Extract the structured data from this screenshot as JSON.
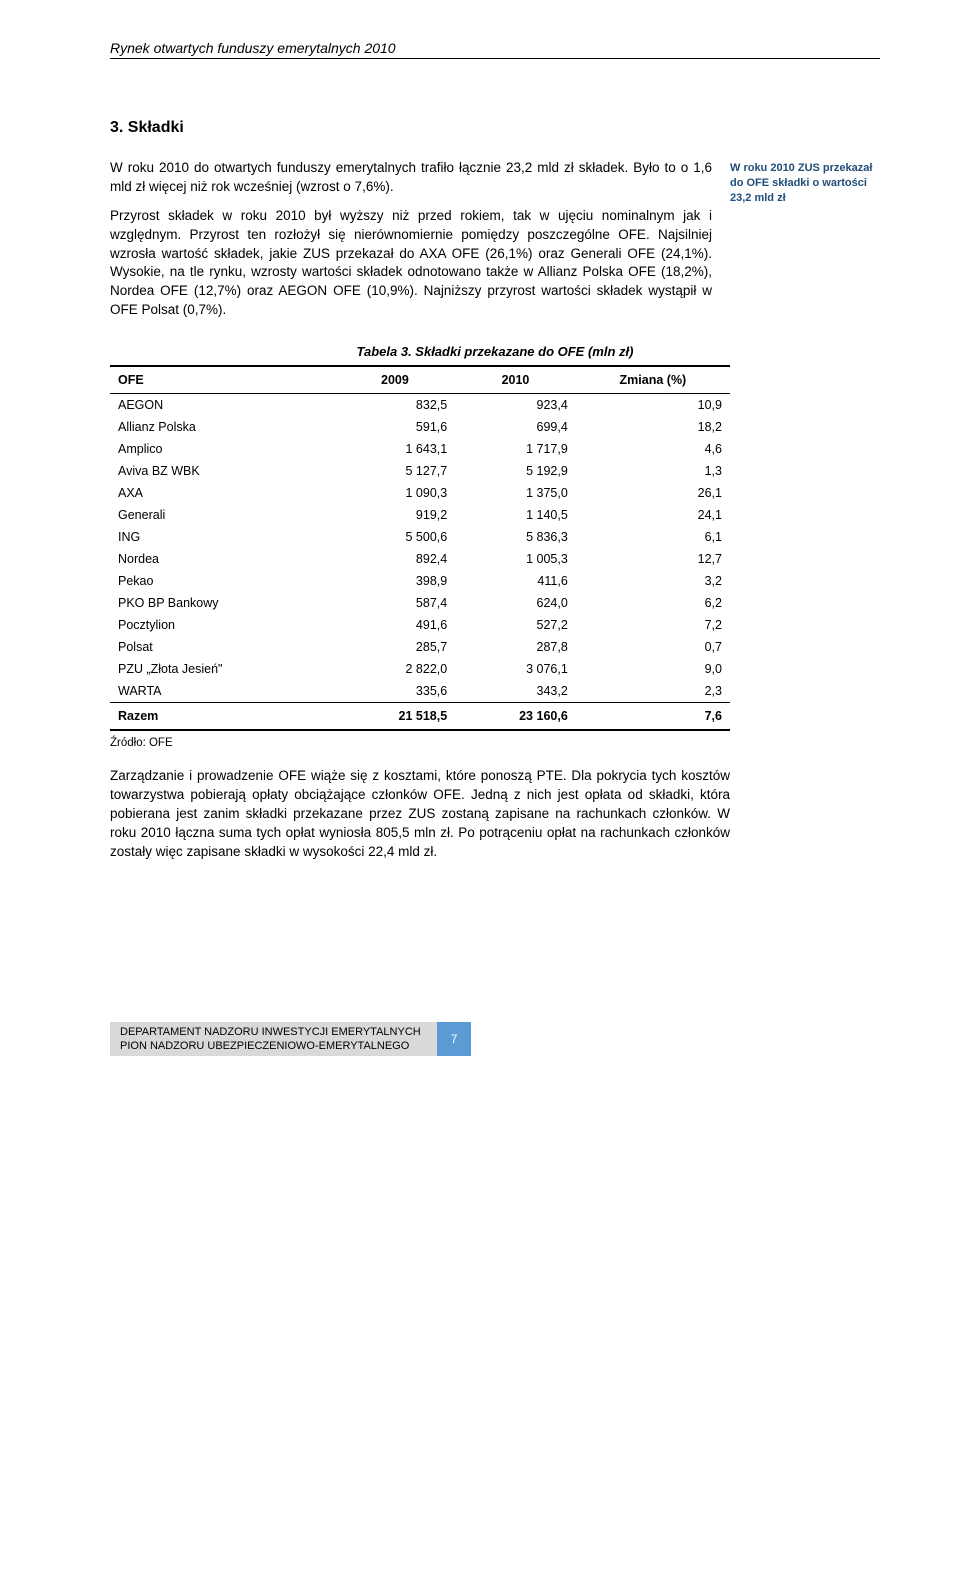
{
  "header": {
    "running": "Rynek otwartych funduszy emerytalnych 2010"
  },
  "section": {
    "title": "3. Składki",
    "para1": "W roku 2010 do otwartych funduszy emerytalnych trafiło łącznie 23,2 mld zł składek. Było to o 1,6 mld zł więcej niż rok wcześniej (wzrost o 7,6%).",
    "para2": "Przyrost składek w roku 2010 był wyższy niż przed rokiem, tak w ujęciu nominalnym jak i względnym. Przyrost ten rozłożył się nierównomiernie pomiędzy poszczególne OFE. Najsilniej wzrosła wartość składek, jakie ZUS przekazał do AXA OFE (26,1%) oraz Generali OFE (24,1%). Wysokie, na tle rynku, wzrosty wartości składek odnotowano także w Allianz Polska OFE (18,2%), Nordea OFE (12,7%) oraz AEGON OFE (10,9%). Najniższy przyrost wartości składek wystąpił w OFE Polsat (0,7%).",
    "sidenote": "W roku 2010 ZUS przekazał do OFE składki o wartości 23,2 mld zł"
  },
  "table": {
    "caption": "Tabela 3. Składki przekazane do OFE (mln zł)",
    "columns": [
      "OFE",
      "2009",
      "2010",
      "Zmiana (%)"
    ],
    "rows": [
      [
        "AEGON",
        "832,5",
        "923,4",
        "10,9"
      ],
      [
        "Allianz Polska",
        "591,6",
        "699,4",
        "18,2"
      ],
      [
        "Amplico",
        "1 643,1",
        "1 717,9",
        "4,6"
      ],
      [
        "Aviva BZ WBK",
        "5 127,7",
        "5 192,9",
        "1,3"
      ],
      [
        "AXA",
        "1 090,3",
        "1 375,0",
        "26,1"
      ],
      [
        "Generali",
        "919,2",
        "1 140,5",
        "24,1"
      ],
      [
        "ING",
        "5 500,6",
        "5 836,3",
        "6,1"
      ],
      [
        "Nordea",
        "892,4",
        "1 005,3",
        "12,7"
      ],
      [
        "Pekao",
        "398,9",
        "411,6",
        "3,2"
      ],
      [
        "PKO BP Bankowy",
        "587,4",
        "624,0",
        "6,2"
      ],
      [
        "Pocztylion",
        "491,6",
        "527,2",
        "7,2"
      ],
      [
        "Polsat",
        "285,7",
        "287,8",
        "0,7"
      ],
      [
        "PZU „Złota Jesień\"",
        "2 822,0",
        "3 076,1",
        "9,0"
      ],
      [
        "WARTA",
        "335,6",
        "343,2",
        "2,3"
      ]
    ],
    "total": [
      "Razem",
      "21 518,5",
      "23 160,6",
      "7,6"
    ],
    "source": "Źródło: OFE"
  },
  "after": {
    "para": "Zarządzanie i prowadzenie OFE wiąże się z kosztami, które ponoszą PTE. Dla pokrycia tych kosztów towarzystwa pobierają opłaty obciążające członków OFE. Jedną z nich jest opłata od składki, która pobierana jest zanim składki przekazane przez ZUS zostaną zapisane na rachunkach członków. W roku 2010 łączna suma tych opłat wyniosła  805,5 mln zł. Po potrąceniu opłat na rachunkach członków zostały więc zapisane składki w wysokości 22,4 mld zł."
  },
  "footer": {
    "line1": "DEPARTAMENT NADZORU INWESTYCJI EMERYTALNYCH",
    "line2": "PION NADZORU UBEZPIECZENIOWO-EMERYTALNEGO",
    "page": "7"
  }
}
